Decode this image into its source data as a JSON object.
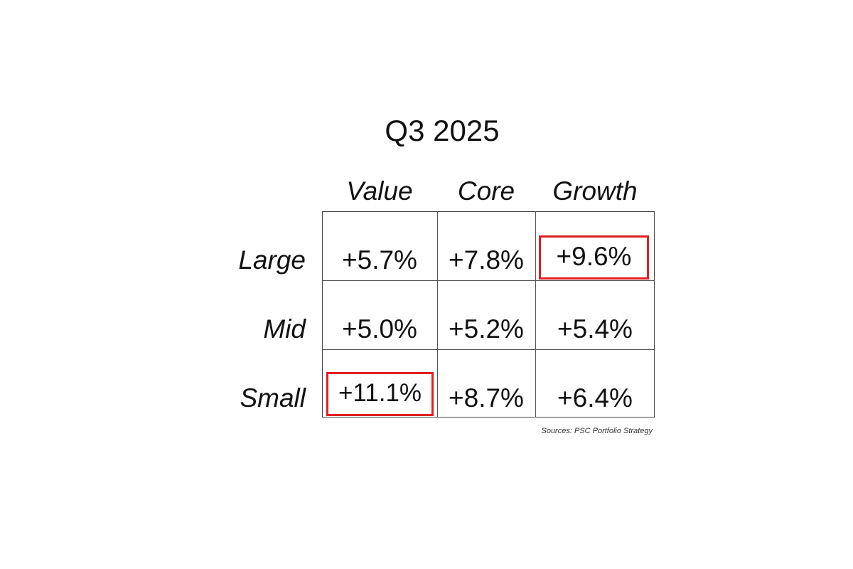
{
  "title": "Q3 2025",
  "columns": [
    "Value",
    "Core",
    "Growth"
  ],
  "rows": [
    {
      "label": "Large",
      "cells": [
        "+5.7%",
        "+7.8%",
        "+9.6%"
      ]
    },
    {
      "label": "Mid",
      "cells": [
        "+5.0%",
        "+5.2%",
        "+5.4%"
      ]
    },
    {
      "label": "Small",
      "cells": [
        "+11.1%",
        "+8.7%",
        "+6.4%"
      ]
    }
  ],
  "source": "Sources: PSC Portfolio Strategy"
}
